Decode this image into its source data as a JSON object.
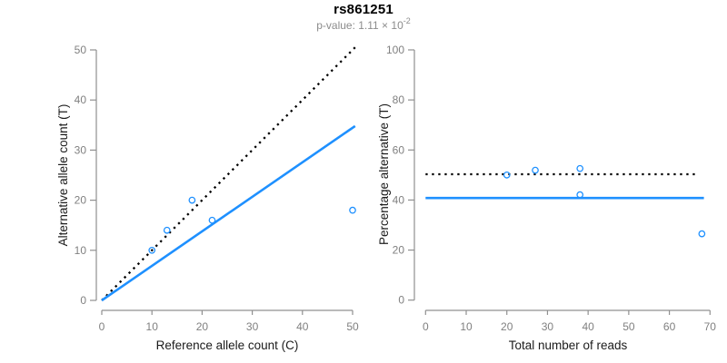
{
  "figure": {
    "title": "rs861251",
    "subtitle": {
      "prefix": "p-value: 1.11 × 10",
      "exponent": "-2"
    }
  },
  "colors": {
    "accent_blue": "#1E90FF",
    "dotted_black": "#000000",
    "axis_gray": "#909090",
    "tick_label_gray": "#808080",
    "axis_title_color": "#1a1a1a",
    "subtitle_gray": "#8c8c8c",
    "background": "#ffffff"
  },
  "chart_data": [
    {
      "id": "allele-count-scatter",
      "type": "scatter",
      "xlabel": "Reference allele count (C)",
      "ylabel": "Alternative allele count (T)",
      "xlim": [
        0,
        50
      ],
      "ylim": [
        0,
        50
      ],
      "xticks": [
        0,
        10,
        20,
        30,
        40,
        50
      ],
      "yticks": [
        0,
        10,
        20,
        30,
        40,
        50
      ],
      "grid": false,
      "legend": null,
      "points": [
        {
          "x": 10,
          "y": 10
        },
        {
          "x": 13,
          "y": 14
        },
        {
          "x": 18,
          "y": 20
        },
        {
          "x": 22,
          "y": 16
        },
        {
          "x": 50,
          "y": 18
        }
      ],
      "lines": [
        {
          "name": "identity-line",
          "style": "dotted",
          "color": "#000000",
          "x1": 0,
          "y1": 0,
          "x2": 50.5,
          "y2": 50.5
        },
        {
          "name": "fit-line",
          "style": "solid",
          "color": "#1E90FF",
          "x1": 0,
          "y1": 0,
          "x2": 50.5,
          "y2": 34.8
        }
      ]
    },
    {
      "id": "percentage-reads-scatter",
      "type": "scatter",
      "xlabel": "Total number of reads",
      "ylabel": "Percentage alternative (T)",
      "xlim": [
        0,
        70
      ],
      "ylim": [
        0,
        100
      ],
      "xticks": [
        0,
        10,
        20,
        30,
        40,
        50,
        60,
        70
      ],
      "yticks": [
        0,
        20,
        40,
        60,
        80,
        100
      ],
      "grid": false,
      "legend": null,
      "points": [
        {
          "x": 20,
          "y": 50.0
        },
        {
          "x": 27,
          "y": 51.9
        },
        {
          "x": 38,
          "y": 52.6
        },
        {
          "x": 38,
          "y": 42.1
        },
        {
          "x": 68,
          "y": 26.5
        }
      ],
      "lines": [
        {
          "name": "expected-50pct-line",
          "style": "dotted",
          "color": "#000000",
          "x1": 0,
          "y1": 50.3,
          "x2": 67.2,
          "y2": 50.3
        },
        {
          "name": "mean-pct-line",
          "style": "solid",
          "color": "#1E90FF",
          "x1": 0,
          "y1": 40.8,
          "x2": 68.5,
          "y2": 40.8
        }
      ]
    }
  ]
}
